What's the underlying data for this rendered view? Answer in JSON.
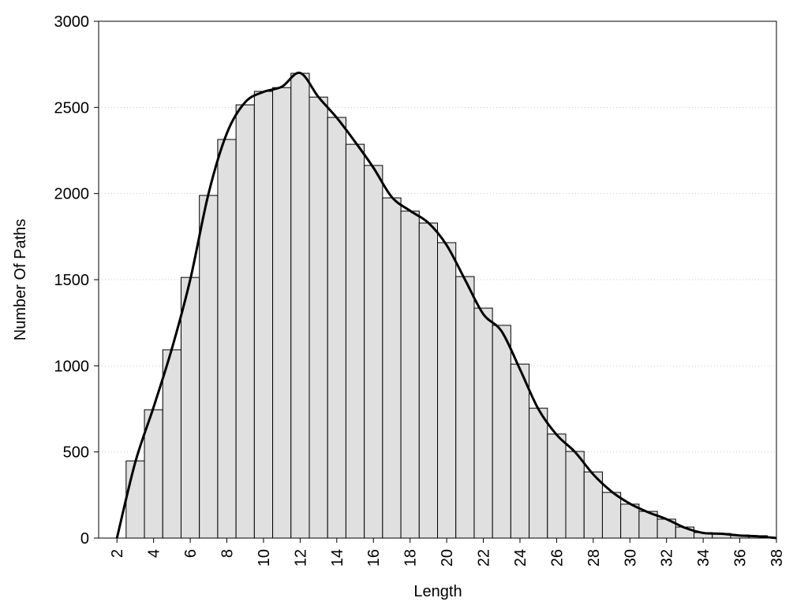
{
  "chart_data": {
    "type": "histogram",
    "xlabel": "Length",
    "ylabel": "Number Of Paths",
    "bins": [
      2.5,
      3.5,
      4.5,
      5.5,
      6.5,
      7.5,
      8.5,
      9.5,
      10.5,
      11.5,
      12.5,
      13.5,
      14.5,
      15.5,
      16.5,
      17.5,
      18.5,
      19.5,
      20.5,
      21.5,
      22.5,
      23.5,
      24.5,
      25.5,
      26.5,
      27.5,
      28.5,
      29.5,
      30.5,
      31.5,
      32.5,
      33.5,
      34.5,
      35.5,
      36.5,
      37.5
    ],
    "values": [
      448,
      745,
      1093,
      1513,
      1989,
      2314,
      2515,
      2593,
      2615,
      2698,
      2560,
      2442,
      2286,
      2163,
      1975,
      1898,
      1829,
      1715,
      1518,
      1335,
      1235,
      1010,
      754,
      604,
      503,
      384,
      265,
      197,
      155,
      110,
      64,
      32,
      27,
      18,
      14
    ],
    "color": "#e0e0e0",
    "curve": {
      "type": "line",
      "color": "#000000",
      "x": [
        2,
        3,
        4,
        5,
        6,
        7,
        8,
        9,
        10,
        11,
        12,
        13,
        14,
        15,
        16,
        17,
        18,
        19,
        20,
        21,
        22,
        23,
        24,
        25,
        26,
        27,
        28,
        29,
        30,
        31,
        32,
        33,
        34,
        35,
        36,
        37,
        38
      ],
      "values": [
        0,
        440,
        760,
        1100,
        1500,
        2000,
        2350,
        2530,
        2590,
        2620,
        2700,
        2560,
        2440,
        2300,
        2150,
        1980,
        1900,
        1830,
        1700,
        1500,
        1300,
        1200,
        980,
        750,
        600,
        500,
        370,
        270,
        200,
        150,
        110,
        60,
        30,
        25,
        15,
        10,
        0
      ]
    },
    "xlim": [
      1,
      38
    ],
    "ylim": [
      0,
      3000
    ],
    "xticks": [
      2,
      4,
      6,
      8,
      10,
      12,
      14,
      16,
      18,
      20,
      22,
      24,
      26,
      28,
      30,
      32,
      34,
      36,
      38
    ],
    "yticks": [
      0,
      500,
      1000,
      1500,
      2000,
      2500,
      3000
    ],
    "grid": true
  }
}
